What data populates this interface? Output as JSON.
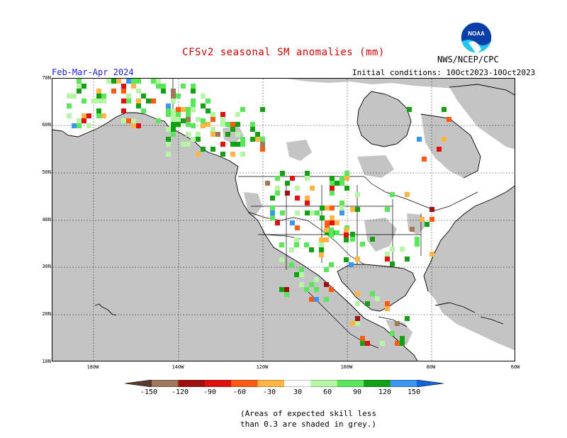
{
  "title": "CFSv2 seasonal SM anomalies (mm)",
  "season": "Feb-Mar-Apr 2024",
  "initial_conditions": "Initial conditions: 10Oct2023-10Oct2023",
  "agency": "NWS/NCEP/CPC",
  "logo_text": "NOAA",
  "lat_labels": [
    "70N",
    "60N",
    "50N",
    "40N",
    "30N",
    "20N",
    "10N"
  ],
  "lon_labels": [
    "180W",
    "140W",
    "120W",
    "100W",
    "80W",
    "60W"
  ],
  "colorbar": {
    "labels": [
      "-150",
      "-120",
      "-90",
      "-60",
      "-30",
      "30",
      "60",
      "90",
      "120",
      "150"
    ],
    "colors": [
      "#5a3a2e",
      "#a0785a",
      "#a01010",
      "#e01010",
      "#ff5a14",
      "#ffb443",
      "#ffffff",
      "#b5f5a5",
      "#5ae65a",
      "#14a014",
      "#3c96f0",
      "#1464dc"
    ]
  },
  "note_lines": [
    "(Areas of expected skill less",
    "than 0.3 are shaded in grey.)"
  ],
  "colors": {
    "grey": "#c4c4c4",
    "title_red": "#d00000",
    "season_blue": "#1b1bd6"
  }
}
